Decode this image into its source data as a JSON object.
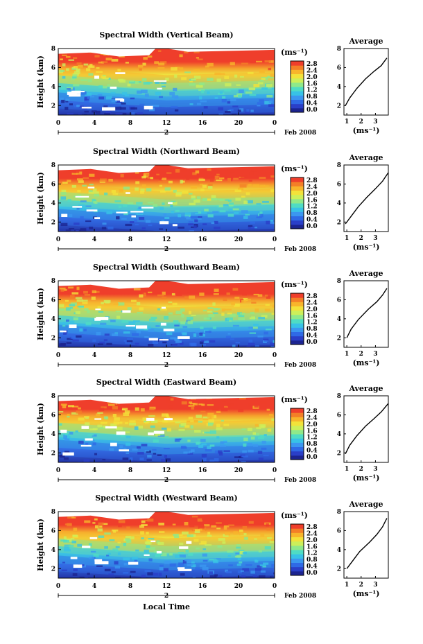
{
  "figure": {
    "bottom_xlabel": "Local Time",
    "date_label": "Feb 2008",
    "day_label": "2",
    "colorbar_unit": "(ms⁻¹)",
    "avg_xlabel": "(ms⁻¹)",
    "avg_title": "Average",
    "ylabel": "Height (km)"
  },
  "chart_data": [
    {
      "type": "heatmap",
      "title": "Spectral Width (Vertical Beam)",
      "beam": "vertical",
      "xlabel": "",
      "ylabel": "Height (km)",
      "xlim": [
        0,
        24
      ],
      "ylim": [
        1,
        8
      ],
      "xticks": [
        "0",
        "4",
        "8",
        "12",
        "16",
        "20",
        "0"
      ],
      "yticks": [
        "2",
        "4",
        "6",
        "8"
      ],
      "colorbar": {
        "range": [
          0,
          2.8
        ],
        "ticks": [
          "2.8",
          "2.4",
          "2.0",
          "1.6",
          "1.2",
          "0.8",
          "0.4",
          "0.0"
        ]
      },
      "average_profile": {
        "title": "Average",
        "xticks": [
          "1",
          "2",
          "3"
        ],
        "yticks": [
          "2",
          "4",
          "6",
          "8"
        ],
        "width": [
          0.9,
          1.2,
          1.7,
          2.3,
          2.9,
          3.4,
          3.8
        ],
        "height": [
          2.0,
          2.8,
          3.8,
          4.8,
          5.6,
          6.2,
          7.0
        ]
      }
    },
    {
      "type": "heatmap",
      "title": "Spectral Width (Northward Beam)",
      "beam": "northward",
      "xlabel": "",
      "ylabel": "Height (km)",
      "xlim": [
        0,
        24
      ],
      "ylim": [
        1,
        8
      ],
      "xticks": [
        "0",
        "4",
        "8",
        "12",
        "16",
        "20",
        "0"
      ],
      "yticks": [
        "2",
        "4",
        "6",
        "8"
      ],
      "colorbar": {
        "range": [
          0,
          2.8
        ],
        "ticks": [
          "2.8",
          "2.4",
          "2.0",
          "1.6",
          "1.2",
          "0.8",
          "0.4",
          "0.0"
        ]
      },
      "average_profile": {
        "title": "Average",
        "xticks": [
          "1",
          "2",
          "3"
        ],
        "yticks": [
          "2",
          "4",
          "6",
          "8"
        ],
        "width": [
          0.9,
          1.3,
          1.8,
          2.4,
          3.0,
          3.5,
          3.9
        ],
        "height": [
          1.8,
          2.6,
          3.6,
          4.6,
          5.5,
          6.3,
          7.2
        ]
      }
    },
    {
      "type": "heatmap",
      "title": "Spectral Width (Southward Beam)",
      "beam": "southward",
      "xlabel": "",
      "ylabel": "Height (km)",
      "xlim": [
        0,
        24
      ],
      "ylim": [
        1,
        8
      ],
      "xticks": [
        "0",
        "4",
        "8",
        "12",
        "16",
        "20",
        "0"
      ],
      "yticks": [
        "2",
        "4",
        "6",
        "8"
      ],
      "colorbar": {
        "range": [
          0,
          2.8
        ],
        "ticks": [
          "2.8",
          "2.4",
          "2.0",
          "1.6",
          "1.2",
          "0.8",
          "0.4",
          "0.0"
        ]
      },
      "average_profile": {
        "title": "Average",
        "xticks": [
          "1",
          "2",
          "3"
        ],
        "yticks": [
          "2",
          "4",
          "6",
          "8"
        ],
        "width": [
          1.0,
          1.3,
          1.8,
          2.5,
          3.1,
          3.5,
          3.8
        ],
        "height": [
          2.0,
          2.9,
          3.9,
          5.0,
          5.8,
          6.5,
          7.2
        ]
      }
    },
    {
      "type": "heatmap",
      "title": "Spectral Width (Eastward Beam)",
      "beam": "eastward",
      "xlabel": "",
      "ylabel": "Height (km)",
      "xlim": [
        0,
        24
      ],
      "ylim": [
        1,
        8
      ],
      "xticks": [
        "0",
        "4",
        "8",
        "12",
        "16",
        "20",
        "0"
      ],
      "yticks": [
        "2",
        "4",
        "6",
        "8"
      ],
      "colorbar": {
        "range": [
          0,
          2.8
        ],
        "ticks": [
          "2.8",
          "2.4",
          "2.0",
          "1.6",
          "1.2",
          "0.8",
          "0.4",
          "0.0"
        ]
      },
      "average_profile": {
        "title": "Average",
        "xticks": [
          "1",
          "2",
          "3"
        ],
        "yticks": [
          "2",
          "4",
          "6",
          "8"
        ],
        "width": [
          0.9,
          1.2,
          1.7,
          2.3,
          2.9,
          3.4,
          3.9
        ],
        "height": [
          1.9,
          2.8,
          3.8,
          4.8,
          5.6,
          6.3,
          7.2
        ]
      }
    },
    {
      "type": "heatmap",
      "title": "Spectral Width (Westward Beam)",
      "beam": "westward",
      "xlabel": "Local Time",
      "ylabel": "Height (km)",
      "xlim": [
        0,
        24
      ],
      "ylim": [
        1,
        8
      ],
      "xticks": [
        "0",
        "4",
        "8",
        "12",
        "16",
        "20",
        "0"
      ],
      "yticks": [
        "2",
        "4",
        "6",
        "8"
      ],
      "colorbar": {
        "range": [
          0,
          2.8
        ],
        "ticks": [
          "2.8",
          "2.4",
          "2.0",
          "1.6",
          "1.2",
          "0.8",
          "0.4",
          "0.0"
        ]
      },
      "average_profile": {
        "title": "Average",
        "xticks": [
          "1",
          "2",
          "3"
        ],
        "yticks": [
          "2",
          "4",
          "6",
          "8"
        ],
        "width": [
          1.0,
          1.4,
          1.9,
          2.6,
          3.1,
          3.5,
          3.8
        ],
        "height": [
          2.0,
          2.8,
          3.8,
          4.8,
          5.6,
          6.4,
          7.3
        ]
      }
    }
  ]
}
